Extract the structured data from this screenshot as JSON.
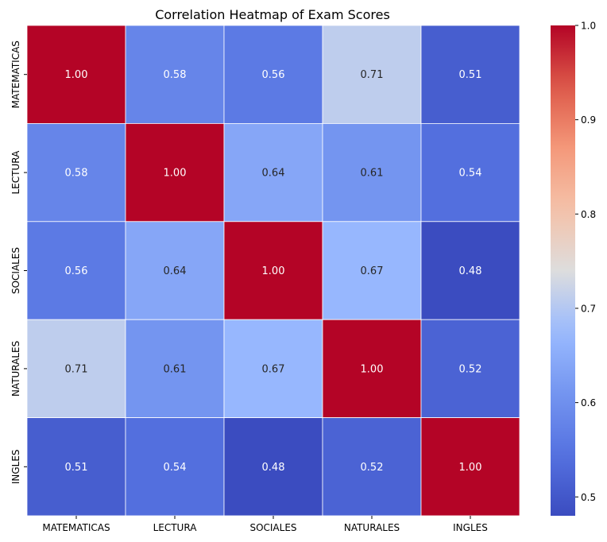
{
  "chart_data": {
    "type": "heatmap",
    "title": "Correlation Heatmap of Exam Scores",
    "row_labels": [
      "MATEMATICAS",
      "LECTURA",
      "SOCIALES",
      "NATURALES",
      "INGLES"
    ],
    "col_labels": [
      "MATEMATICAS",
      "LECTURA",
      "SOCIALES",
      "NATURALES",
      "INGLES"
    ],
    "values": [
      [
        1.0,
        0.58,
        0.56,
        0.71,
        0.51
      ],
      [
        0.58,
        1.0,
        0.64,
        0.61,
        0.54
      ],
      [
        0.56,
        0.64,
        1.0,
        0.67,
        0.48
      ],
      [
        0.71,
        0.61,
        0.67,
        1.0,
        0.52
      ],
      [
        0.51,
        0.54,
        0.48,
        0.52,
        1.0
      ]
    ],
    "annotations": [
      [
        "1.00",
        "0.58",
        "0.56",
        "0.71",
        "0.51"
      ],
      [
        "0.58",
        "1.00",
        "0.64",
        "0.61",
        "0.54"
      ],
      [
        "0.56",
        "0.64",
        "1.00",
        "0.67",
        "0.48"
      ],
      [
        "0.71",
        "0.61",
        "0.67",
        "1.00",
        "0.52"
      ],
      [
        "0.51",
        "0.54",
        "0.48",
        "0.52",
        "1.00"
      ]
    ],
    "colormap": "coolwarm",
    "colorbar": {
      "vmin": 0.48,
      "vmax": 1.0,
      "ticks": [
        0.5,
        0.6,
        0.7,
        0.8,
        0.9,
        1.0
      ],
      "tick_labels": [
        "0.5",
        "0.6",
        "0.7",
        "0.8",
        "0.9",
        "1.0"
      ],
      "placement": "right"
    },
    "grid": false
  }
}
